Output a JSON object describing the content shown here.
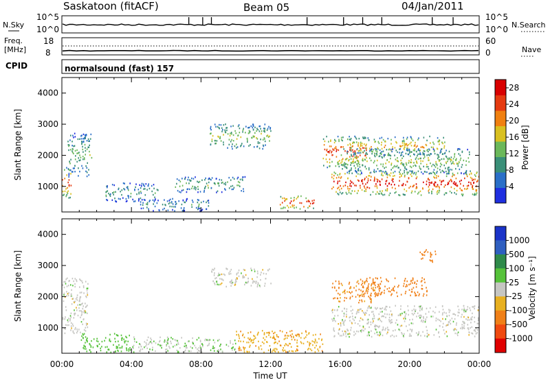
{
  "header": {
    "station": "Saskatoon (fitACF)",
    "beam": "Beam 05",
    "date": "04/Jan/2011"
  },
  "top_panels": {
    "nsky_label": "N.Sky",
    "nsky_ticks": [
      "10^5",
      "10^0"
    ],
    "nsearch_label": "N.Search",
    "nsearch_ticks": [
      "10^5",
      "10^0"
    ],
    "freq_label_1": "Freq.",
    "freq_label_2": "[MHz]",
    "freq_ticks": [
      "18",
      "8"
    ],
    "nave_label": "Nave",
    "nave_ticks": [
      "60",
      "0"
    ],
    "cpid_label": "CPID",
    "cpid_text": "normalsound (fast) 157"
  },
  "colors": {
    "power_scale": [
      "#1f2fe0",
      "#2a6fc8",
      "#3a8f78",
      "#6bb85a",
      "#d9c020",
      "#f08010",
      "#e53a10",
      "#d80000"
    ],
    "velocity_scale": [
      "#1a33c8",
      "#2f5fc0",
      "#2f8a4a",
      "#56c23a",
      "#c6c6c2",
      "#e8b020",
      "#f08018",
      "#f04a10",
      "#e00000"
    ]
  },
  "chart_data": [
    {
      "type": "heatmap",
      "title": "",
      "quantity": "Power",
      "xlabel": "Time UT",
      "ylabel": "Slant Range [km]",
      "x_ticks": [
        "00:00",
        "04:00",
        "08:00",
        "12:00",
        "16:00",
        "20:00",
        "00:00"
      ],
      "xlim_hours": [
        0,
        24
      ],
      "y_ticks": [
        1000,
        2000,
        3000,
        4000
      ],
      "ylim": [
        180,
        4500
      ],
      "colorbar_label": "Power [dB]",
      "colorbar_ticks": [
        4,
        8,
        12,
        16,
        20,
        24,
        28
      ],
      "colorbar_range": [
        0,
        30
      ],
      "echo_regions": [
        {
          "t": [
            0.0,
            0.5
          ],
          "r": [
            600,
            1600
          ],
          "level": 24
        },
        {
          "t": [
            0.3,
            1.7
          ],
          "r": [
            1300,
            2700
          ],
          "level": 12
        },
        {
          "t": [
            2.5,
            5.5
          ],
          "r": [
            500,
            1100
          ],
          "level": 10
        },
        {
          "t": [
            4.5,
            8.5
          ],
          "r": [
            200,
            600
          ],
          "level": 9
        },
        {
          "t": [
            6.5,
            10.5
          ],
          "r": [
            800,
            1300
          ],
          "level": 12
        },
        {
          "t": [
            8.5,
            12.0
          ],
          "r": [
            2200,
            3000
          ],
          "level": 14
        },
        {
          "t": [
            12.5,
            14.5
          ],
          "r": [
            250,
            700
          ],
          "level": 26
        },
        {
          "t": [
            15.0,
            17.5
          ],
          "r": [
            1600,
            2600
          ],
          "level": 24
        },
        {
          "t": [
            15.5,
            24.0
          ],
          "r": [
            700,
            1500
          ],
          "level": 26
        },
        {
          "t": [
            16.5,
            22.0
          ],
          "r": [
            2000,
            2600
          ],
          "level": 18
        },
        {
          "t": [
            16.0,
            23.5
          ],
          "r": [
            1400,
            2200
          ],
          "level": 14
        }
      ]
    },
    {
      "type": "heatmap",
      "title": "",
      "quantity": "Velocity",
      "xlabel": "Time UT",
      "ylabel": "Slant Range [km]",
      "x_ticks": [
        "00:00",
        "04:00",
        "08:00",
        "12:00",
        "16:00",
        "20:00",
        "00:00"
      ],
      "xlim_hours": [
        0,
        24
      ],
      "y_ticks": [
        1000,
        2000,
        3000,
        4000
      ],
      "ylim": [
        180,
        4500
      ],
      "colorbar_label": "Velocity [m s⁻¹]",
      "colorbar_ticks": [
        1000,
        500,
        100,
        25,
        -25,
        -100,
        -500,
        -1000
      ],
      "echo_regions": [
        {
          "t": [
            0.0,
            1.5
          ],
          "r": [
            800,
            2600
          ],
          "level": 0
        },
        {
          "t": [
            1.0,
            4.0
          ],
          "r": [
            200,
            800
          ],
          "level": 60
        },
        {
          "t": [
            4.0,
            10.0
          ],
          "r": [
            200,
            700
          ],
          "level": 20
        },
        {
          "t": [
            8.5,
            12.0
          ],
          "r": [
            2300,
            2900
          ],
          "level": 0
        },
        {
          "t": [
            10.0,
            15.0
          ],
          "r": [
            200,
            900
          ],
          "level": -80
        },
        {
          "t": [
            15.5,
            24.0
          ],
          "r": [
            700,
            1700
          ],
          "level": 0
        },
        {
          "t": [
            15.5,
            18.0
          ],
          "r": [
            1800,
            2500
          ],
          "level": -120
        },
        {
          "t": [
            17.0,
            21.0
          ],
          "r": [
            2000,
            2600
          ],
          "level": -150
        },
        {
          "t": [
            20.5,
            21.5
          ],
          "r": [
            3100,
            3500
          ],
          "level": -150
        }
      ]
    }
  ]
}
